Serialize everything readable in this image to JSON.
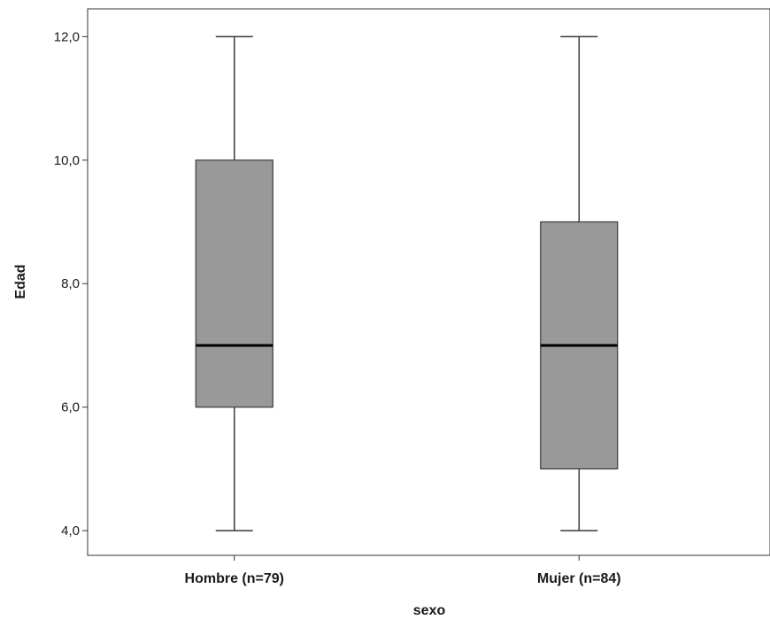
{
  "chart_data": {
    "type": "boxplot",
    "xlabel": "sexo",
    "ylabel": "Edad",
    "ylim": [
      3.6,
      12.45
    ],
    "yticks": [
      4,
      6,
      8,
      10,
      12
    ],
    "ytick_labels": [
      "4,0",
      "6,0",
      "8,0",
      "10,0",
      "12,0"
    ],
    "categories": [
      "Hombre (n=79)",
      "Mujer (n=84)"
    ],
    "boxes": [
      {
        "category": "Hombre (n=79)",
        "min": 4,
        "q1": 6,
        "median": 7,
        "q3": 10,
        "max": 12
      },
      {
        "category": "Mujer (n=84)",
        "min": 4,
        "q1": 5,
        "median": 7,
        "q3": 9,
        "max": 12
      }
    ],
    "colors": {
      "box_fill": "#999999",
      "box_stroke": "#3a3a3a",
      "median": "#000000",
      "axis": "#333333"
    },
    "grid": false,
    "legend": "none"
  }
}
